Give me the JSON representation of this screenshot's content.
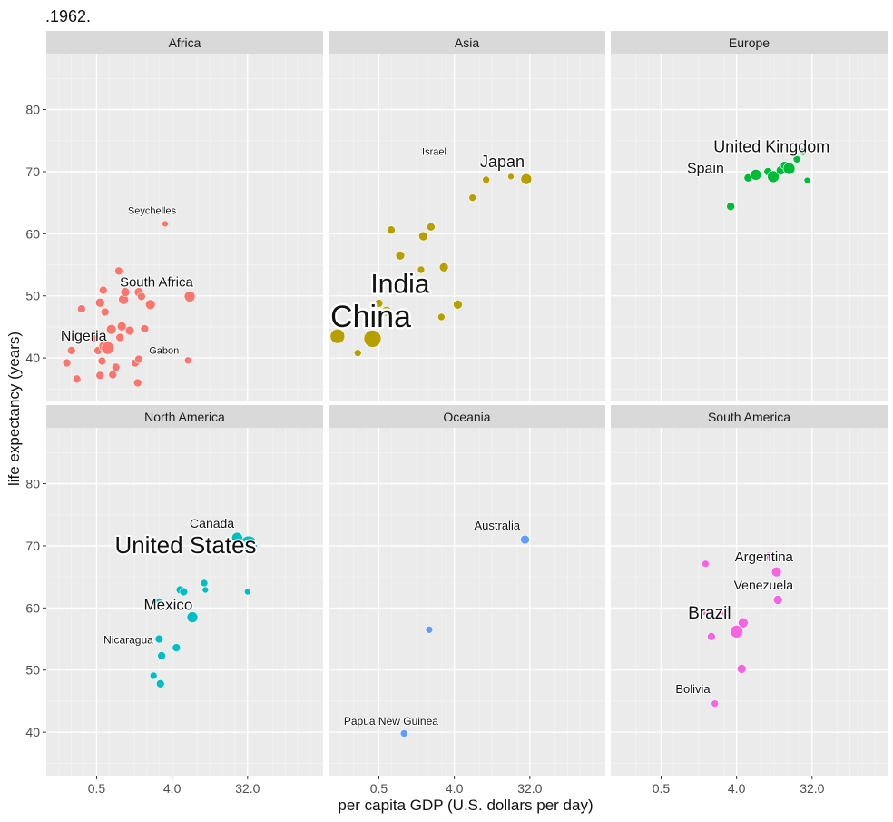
{
  "chart_data": {
    "type": "scatter",
    "title": ".1962.",
    "xlabel": "per capita GDP (U.S. dollars per day)",
    "ylabel": "life expectancy (years)",
    "x_scale": "log2",
    "xlim": [
      0.125,
      256
    ],
    "ylim": [
      33,
      89
    ],
    "x_ticks": [
      {
        "value": 0.5,
        "label": "0.5"
      },
      {
        "value": 4,
        "label": "4.0"
      },
      {
        "value": 32,
        "label": "32.0"
      }
    ],
    "y_ticks": [
      {
        "value": 40,
        "label": "40"
      },
      {
        "value": 50,
        "label": "50"
      },
      {
        "value": 60,
        "label": "60"
      },
      {
        "value": 70,
        "label": "70"
      },
      {
        "value": 80,
        "label": "80"
      }
    ],
    "grid": true,
    "colors": {
      "Africa": "#F8766D",
      "Asia": "#B79F00",
      "Europe": "#00BA38",
      "North America": "#00BFC4",
      "Oceania": "#619CFF",
      "South America": "#F564E3"
    },
    "panels": [
      {
        "name": "Africa",
        "points": [
          {
            "x": 0.22,
            "y": 39.2,
            "s": 9
          },
          {
            "x": 0.25,
            "y": 41.2,
            "s": 9
          },
          {
            "x": 0.29,
            "y": 36.6,
            "s": 9
          },
          {
            "x": 0.33,
            "y": 47.9,
            "s": 9
          },
          {
            "x": 0.45,
            "y": 43.2,
            "s": 9
          },
          {
            "x": 0.52,
            "y": 41.2,
            "s": 9
          },
          {
            "x": 0.55,
            "y": 48.9,
            "s": 10
          },
          {
            "x": 0.55,
            "y": 37.2,
            "s": 9
          },
          {
            "x": 0.58,
            "y": 39.5,
            "s": 9
          },
          {
            "x": 0.62,
            "y": 41.9,
            "s": 12
          },
          {
            "x": 0.6,
            "y": 50.9,
            "s": 9
          },
          {
            "x": 0.63,
            "y": 47.4,
            "s": 9
          },
          {
            "x": 0.68,
            "y": 41.6,
            "s": 14
          },
          {
            "x": 0.75,
            "y": 44.6,
            "s": 11
          },
          {
            "x": 0.78,
            "y": 37.3,
            "s": 9
          },
          {
            "x": 0.85,
            "y": 38.5,
            "s": 9
          },
          {
            "x": 0.92,
            "y": 54.0,
            "s": 9
          },
          {
            "x": 0.95,
            "y": 43.3,
            "s": 9
          },
          {
            "x": 1.0,
            "y": 45.1,
            "s": 10
          },
          {
            "x": 1.05,
            "y": 49.4,
            "s": 11
          },
          {
            "x": 1.1,
            "y": 50.6,
            "s": 10
          },
          {
            "x": 1.25,
            "y": 44.4,
            "s": 10
          },
          {
            "x": 1.45,
            "y": 39.2,
            "s": 9
          },
          {
            "x": 1.55,
            "y": 36.0,
            "s": 9
          },
          {
            "x": 1.6,
            "y": 39.8,
            "s": 9
          },
          {
            "x": 1.6,
            "y": 50.6,
            "s": 10
          },
          {
            "x": 1.72,
            "y": 49.9,
            "s": 9
          },
          {
            "x": 1.88,
            "y": 44.7,
            "s": 9
          },
          {
            "x": 2.2,
            "y": 48.6,
            "s": 11
          },
          {
            "x": 3.3,
            "y": 61.6,
            "s": 7
          },
          {
            "x": 6.2,
            "y": 39.6,
            "s": 8
          },
          {
            "x": 6.5,
            "y": 49.9,
            "s": 12
          }
        ],
        "labels": [
          {
            "text": "Seychelles",
            "x": 2.3,
            "y": 63.2,
            "size": 11
          },
          {
            "text": "South Africa",
            "x": 2.6,
            "y": 51.5,
            "size": 15
          },
          {
            "text": "Nigeria",
            "x": 0.35,
            "y": 42.8,
            "size": 16
          },
          {
            "text": "Gabon",
            "x": 3.2,
            "y": 40.7,
            "size": 11
          }
        ]
      },
      {
        "name": "Asia",
        "points": [
          {
            "x": 0.16,
            "y": 43.5,
            "s": 16
          },
          {
            "x": 0.28,
            "y": 40.8,
            "s": 8
          },
          {
            "x": 0.42,
            "y": 43.1,
            "s": 19
          },
          {
            "x": 0.5,
            "y": 48.8,
            "s": 9
          },
          {
            "x": 0.62,
            "y": 47.5,
            "s": 11
          },
          {
            "x": 0.7,
            "y": 60.6,
            "s": 9
          },
          {
            "x": 0.9,
            "y": 56.5,
            "s": 10
          },
          {
            "x": 1.6,
            "y": 54.2,
            "s": 8
          },
          {
            "x": 1.7,
            "y": 59.6,
            "s": 10
          },
          {
            "x": 2.1,
            "y": 61.1,
            "s": 9
          },
          {
            "x": 2.8,
            "y": 46.6,
            "s": 8
          },
          {
            "x": 3.0,
            "y": 54.6,
            "s": 10
          },
          {
            "x": 4.4,
            "y": 48.6,
            "s": 10
          },
          {
            "x": 6.6,
            "y": 65.8,
            "s": 8
          },
          {
            "x": 9.6,
            "y": 68.7,
            "s": 8
          },
          {
            "x": 19.0,
            "y": 69.2,
            "s": 7
          },
          {
            "x": 29.0,
            "y": 68.8,
            "s": 12
          }
        ],
        "labels": [
          {
            "text": "Israel",
            "x": 2.3,
            "y": 72.7,
            "size": 11
          },
          {
            "text": "Japan",
            "x": 15.0,
            "y": 70.7,
            "size": 18
          },
          {
            "text": "India",
            "x": 0.9,
            "y": 50.5,
            "size": 30
          },
          {
            "text": "China",
            "x": 0.4,
            "y": 45.0,
            "size": 34
          }
        ]
      },
      {
        "name": "Europe",
        "points": [
          {
            "x": 3.4,
            "y": 64.4,
            "s": 9
          },
          {
            "x": 5.5,
            "y": 69.0,
            "s": 9
          },
          {
            "x": 6.8,
            "y": 69.5,
            "s": 12
          },
          {
            "x": 9.5,
            "y": 70.0,
            "s": 9
          },
          {
            "x": 11.0,
            "y": 69.2,
            "s": 13
          },
          {
            "x": 13.5,
            "y": 70.2,
            "s": 10
          },
          {
            "x": 15.0,
            "y": 71.0,
            "s": 9
          },
          {
            "x": 17.0,
            "y": 70.5,
            "s": 13
          },
          {
            "x": 21.0,
            "y": 72.0,
            "s": 8
          },
          {
            "x": 25.0,
            "y": 73.2,
            "s": 8
          },
          {
            "x": 28.0,
            "y": 68.6,
            "s": 7
          }
        ],
        "labels": [
          {
            "text": "United Kingdom",
            "x": 10.5,
            "y": 73.1,
            "size": 18
          },
          {
            "text": "Spain",
            "x": 1.7,
            "y": 69.8,
            "size": 16
          }
        ]
      },
      {
        "name": "North America",
        "points": [
          {
            "x": 2.4,
            "y": 49.1,
            "s": 8
          },
          {
            "x": 2.8,
            "y": 61.1,
            "s": 7
          },
          {
            "x": 2.8,
            "y": 55.0,
            "s": 9
          },
          {
            "x": 2.9,
            "y": 47.8,
            "s": 9
          },
          {
            "x": 3.0,
            "y": 52.3,
            "s": 9
          },
          {
            "x": 4.5,
            "y": 53.6,
            "s": 9
          },
          {
            "x": 5.0,
            "y": 62.9,
            "s": 9
          },
          {
            "x": 5.5,
            "y": 62.6,
            "s": 9
          },
          {
            "x": 7.0,
            "y": 58.5,
            "s": 12
          },
          {
            "x": 9.7,
            "y": 64.0,
            "s": 8
          },
          {
            "x": 10.0,
            "y": 62.9,
            "s": 7
          },
          {
            "x": 24.0,
            "y": 71.3,
            "s": 12
          },
          {
            "x": 33.0,
            "y": 70.2,
            "s": 19
          },
          {
            "x": 32.0,
            "y": 62.6,
            "s": 7
          }
        ],
        "labels": [
          {
            "text": "Canada",
            "x": 12.0,
            "y": 72.9,
            "size": 14
          },
          {
            "text": "United States",
            "x": 5.8,
            "y": 68.8,
            "size": 26
          },
          {
            "text": "Mexico",
            "x": 3.6,
            "y": 59.7,
            "size": 17
          },
          {
            "text": "Nicaragua",
            "x": 1.2,
            "y": 54.3,
            "size": 12
          }
        ]
      },
      {
        "name": "Oceania",
        "points": [
          {
            "x": 1.0,
            "y": 39.8,
            "s": 8
          },
          {
            "x": 2.0,
            "y": 56.5,
            "s": 8
          },
          {
            "x": 28.0,
            "y": 71.0,
            "s": 10
          }
        ],
        "labels": [
          {
            "text": "Australia",
            "x": 13.0,
            "y": 72.6,
            "size": 13
          },
          {
            "text": "Papua New Guinea",
            "x": 0.7,
            "y": 41.2,
            "size": 12
          }
        ]
      },
      {
        "name": "South America",
        "points": [
          {
            "x": 2.2,
            "y": 44.6,
            "s": 8
          },
          {
            "x": 1.6,
            "y": 59.4,
            "s": 8
          },
          {
            "x": 1.7,
            "y": 67.1,
            "s": 8
          },
          {
            "x": 2.0,
            "y": 55.4,
            "s": 9
          },
          {
            "x": 3.0,
            "y": 59.3,
            "s": 10
          },
          {
            "x": 3.1,
            "y": 59.4,
            "s": 9
          },
          {
            "x": 4.0,
            "y": 56.2,
            "s": 14
          },
          {
            "x": 4.8,
            "y": 57.6,
            "s": 11
          },
          {
            "x": 4.6,
            "y": 50.2,
            "s": 10
          },
          {
            "x": 9.6,
            "y": 68.4,
            "s": 8
          },
          {
            "x": 12.0,
            "y": 65.8,
            "s": 11
          },
          {
            "x": 12.5,
            "y": 61.3,
            "s": 10
          }
        ],
        "labels": [
          {
            "text": "Argentina",
            "x": 8.5,
            "y": 67.5,
            "size": 15
          },
          {
            "text": "Venezuela",
            "x": 8.4,
            "y": 63.0,
            "size": 14
          },
          {
            "text": "Brazil",
            "x": 1.9,
            "y": 58.3,
            "size": 19
          },
          {
            "text": "Bolivia",
            "x": 1.2,
            "y": 46.3,
            "size": 13
          }
        ]
      }
    ]
  }
}
